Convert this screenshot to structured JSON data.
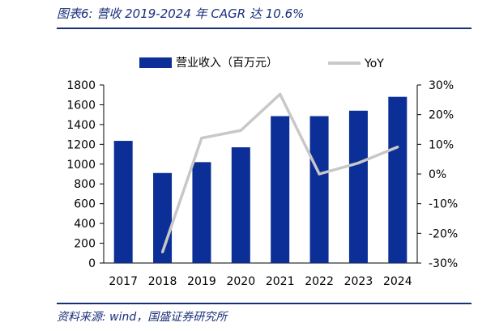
{
  "title": "图表6:  营收 2019-2024 年 CAGR 达 10.6%",
  "source": "资料来源: wind，国盛证券研究所",
  "chart_data": {
    "type": "bar",
    "categories": [
      "2017",
      "2018",
      "2019",
      "2020",
      "2021",
      "2022",
      "2023",
      "2024"
    ],
    "series": [
      {
        "name": "营业收入（百万元）",
        "type": "bar",
        "axis": "left",
        "color": "#0b2f96",
        "values": [
          1235,
          910,
          1020,
          1170,
          1485,
          1485,
          1540,
          1680
        ]
      },
      {
        "name": "YoY",
        "type": "line",
        "axis": "right",
        "color": "#c8c8c8",
        "values": [
          null,
          -26.3,
          12.1,
          14.7,
          26.9,
          0.0,
          3.7,
          9.1
        ]
      }
    ],
    "y_left": {
      "min": 0,
      "max": 1800,
      "ticks": [
        0,
        200,
        400,
        600,
        800,
        1000,
        1200,
        1400,
        1600,
        1800
      ]
    },
    "y_right": {
      "min": -30,
      "max": 30,
      "ticks": [
        "-30%",
        "-20%",
        "-10%",
        "0%",
        "10%",
        "20%",
        "30%"
      ]
    },
    "legend_position": "top",
    "grid": false
  }
}
